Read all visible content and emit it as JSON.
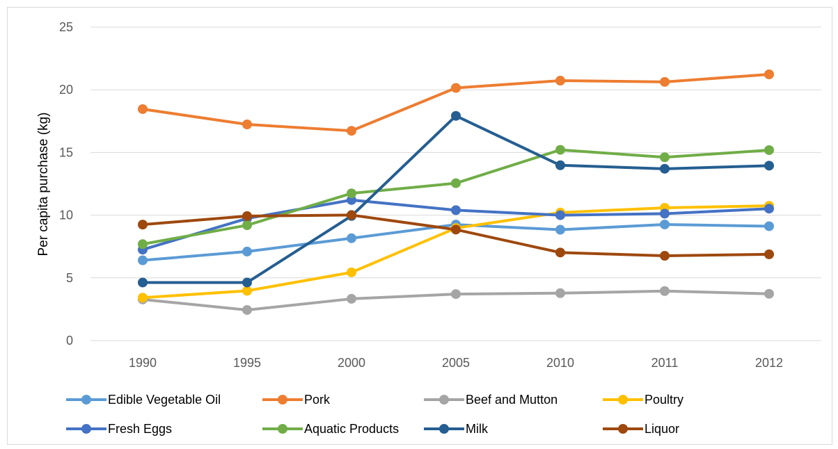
{
  "chart_data": {
    "type": "line",
    "title": "",
    "xlabel": "",
    "ylabel": "Per capita purchase (kg)",
    "categories": [
      "1990",
      "1995",
      "2000",
      "2005",
      "2010",
      "2011",
      "2012"
    ],
    "ylim": [
      0,
      25
    ],
    "yticks": [
      0,
      5,
      10,
      15,
      20,
      25
    ],
    "grid": "horizontal",
    "legend": "bottom",
    "series": [
      {
        "name": "Edible Vegetable Oil",
        "color": "#5b9bd5",
        "values": [
          6.4,
          7.1,
          8.16,
          9.25,
          8.84,
          9.26,
          9.12
        ]
      },
      {
        "name": "Pork",
        "color": "#ed7d31",
        "values": [
          18.46,
          17.24,
          16.73,
          20.15,
          20.73,
          20.63,
          21.23
        ]
      },
      {
        "name": "Beef and Mutton",
        "color": "#a5a5a5",
        "values": [
          3.28,
          2.44,
          3.33,
          3.71,
          3.78,
          3.95,
          3.73
        ]
      },
      {
        "name": "Poultry",
        "color": "#ffc000",
        "values": [
          3.42,
          3.97,
          5.44,
          8.97,
          10.21,
          10.59,
          10.75
        ]
      },
      {
        "name": "Fresh Eggs",
        "color": "#4472c4",
        "values": [
          7.25,
          9.74,
          11.21,
          10.4,
          10.0,
          10.12,
          10.52
        ]
      },
      {
        "name": "Aquatic Products",
        "color": "#70ad47",
        "values": [
          7.69,
          9.2,
          11.74,
          12.55,
          15.21,
          14.62,
          15.19
        ]
      },
      {
        "name": "Milk",
        "color": "#255e91",
        "values": [
          4.63,
          4.63,
          9.94,
          17.92,
          13.98,
          13.7,
          13.95
        ]
      },
      {
        "name": "Liquor",
        "color": "#9e480e",
        "values": [
          9.25,
          9.93,
          10.01,
          8.85,
          7.02,
          6.76,
          6.88
        ]
      }
    ]
  }
}
